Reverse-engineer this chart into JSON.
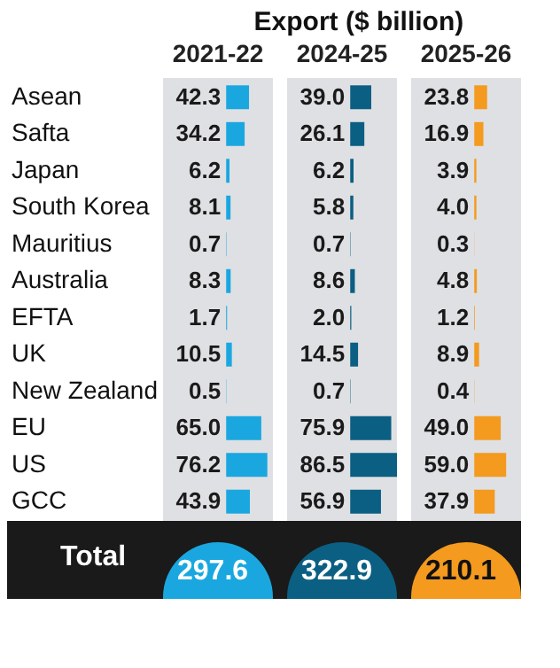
{
  "chart_data": [
    {
      "type": "bar",
      "orientation": "horizontal",
      "categories": [
        "Asean",
        "Safta",
        "Japan",
        "South Korea",
        "Mauritius",
        "Australia",
        "EFTA",
        "UK",
        "New Zealand",
        "EU",
        "US",
        "GCC"
      ],
      "series": [
        {
          "name": "2021-22",
          "color": "#1aa7e0",
          "values": [
            42.3,
            34.2,
            6.2,
            8.1,
            0.7,
            8.3,
            1.7,
            10.5,
            0.5,
            65.0,
            76.2,
            43.9
          ],
          "value_labels": [
            "42.3",
            "34.2",
            "6.2",
            "8.1",
            "0.7",
            "8.3",
            "1.7",
            "10.5",
            "0.5",
            "65.0",
            "76.2",
            "43.9"
          ]
        }
      ],
      "annotations": [
        "Total",
        "297.6"
      ]
    },
    {
      "type": "bar",
      "orientation": "horizontal",
      "title": "Export ($ billion)",
      "tick_labels": false,
      "categories": [
        null,
        null,
        null,
        null,
        null,
        null,
        null,
        null,
        null,
        null,
        null,
        null
      ],
      "series": [
        {
          "name": "2024-25",
          "color": "#0b5f82",
          "values": [
            39.0,
            26.1,
            6.2,
            5.8,
            0.7,
            8.6,
            2.0,
            14.5,
            0.7,
            75.9,
            86.5,
            56.9
          ],
          "value_labels": [
            "39.0",
            "26.1",
            "6.2",
            "5.8",
            "0.7",
            "8.6",
            "2.0",
            "14.5",
            "0.7",
            "75.9",
            "86.5",
            "56.9"
          ]
        }
      ],
      "annotations": [
        "322.9"
      ]
    },
    {
      "type": "bar",
      "orientation": "horizontal",
      "tick_labels": false,
      "categories": [
        null,
        null,
        null,
        null,
        null,
        null,
        null,
        null,
        null,
        null,
        null,
        null
      ],
      "series": [
        {
          "name": "2025-26",
          "color": "#f39a1f",
          "values": [
            23.8,
            16.9,
            3.9,
            4.0,
            0.3,
            4.8,
            1.2,
            8.9,
            0.4,
            49.0,
            59.0,
            37.9
          ],
          "value_labels": [
            "23.8",
            "16.9",
            "3.9",
            "4.0",
            "0.3",
            "4.8",
            "1.2",
            "8.9",
            "0.4",
            "49.0",
            "59.0",
            "37.9"
          ]
        }
      ],
      "annotations": [
        "210.1"
      ]
    }
  ]
}
